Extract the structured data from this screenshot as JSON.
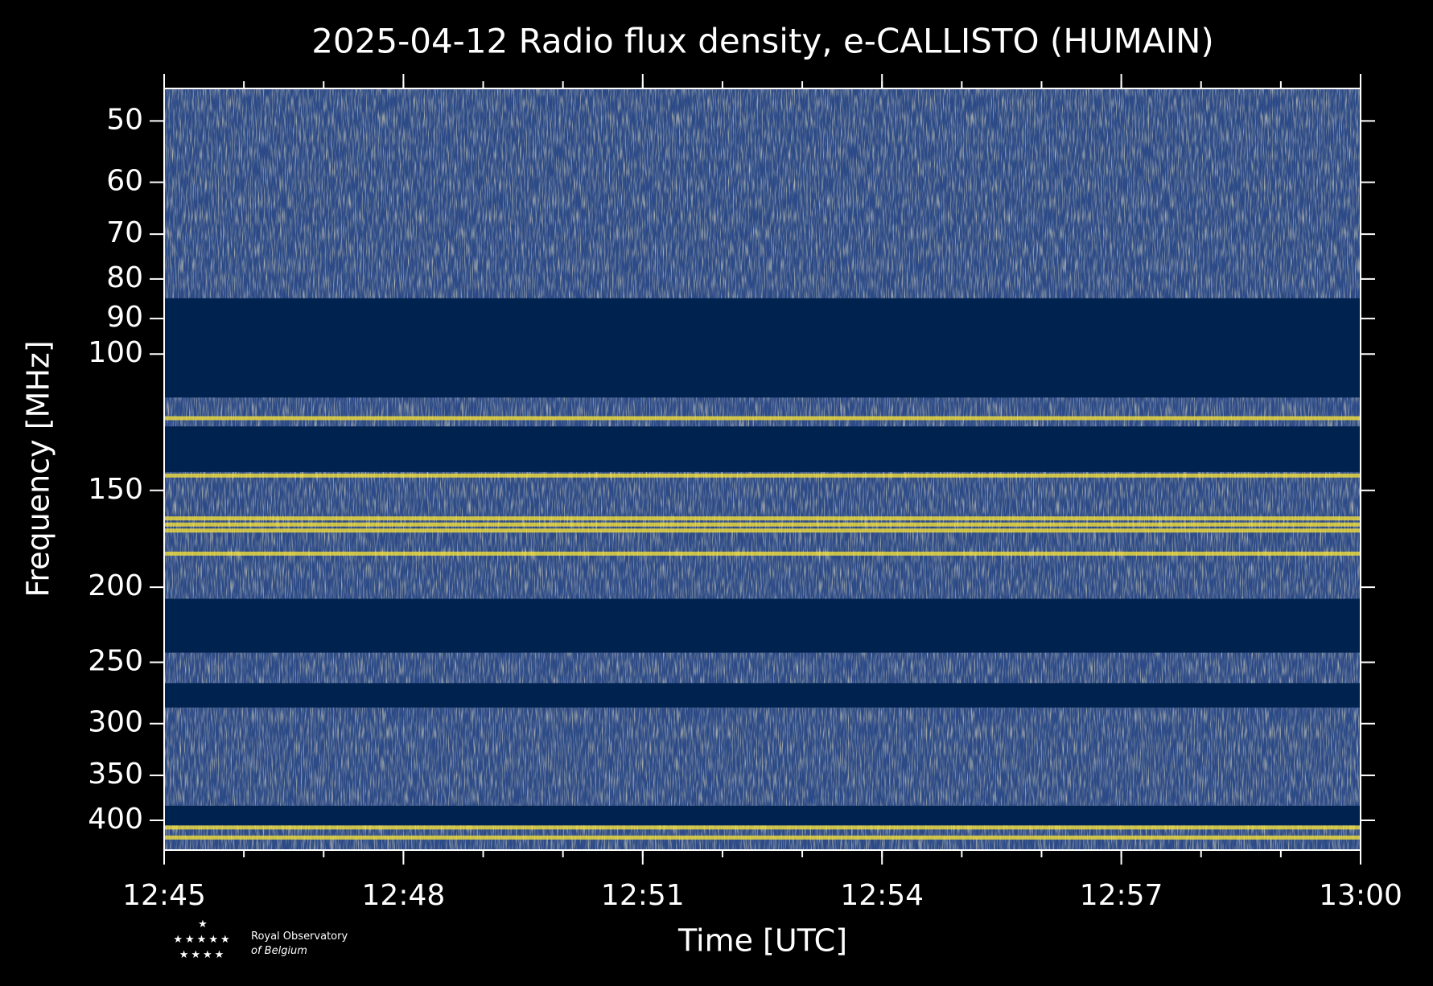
{
  "chart_data": {
    "type": "spectrogram",
    "title": "2025-04-12 Radio flux density, e-CALLISTO (HUMAIN)",
    "x_label": "Time [UTC]",
    "y_label": "Frequency [MHz]",
    "xlim": [
      "12:45",
      "13:00"
    ],
    "xticks": [
      "12:45",
      "12:48",
      "12:51",
      "12:54",
      "12:57",
      "13:00"
    ],
    "ylim": [
      45.4,
      437
    ],
    "yticks": [
      50,
      60,
      70,
      80,
      90,
      100,
      150,
      200,
      250,
      300,
      350,
      400
    ],
    "log_y": true,
    "invert_y": true,
    "masked_bands": [
      [
        84.7,
        113.8
      ],
      [
        124,
        142
      ],
      [
        207,
        243
      ],
      [
        266,
        286
      ],
      [
        383,
        406
      ]
    ],
    "bright_lines": [
      121,
      143.5,
      163,
      166,
      169,
      181,
      408.6,
      421
    ],
    "color": "#fde737",
    "mask_color": "#00224e",
    "noise_color": "#2c4a87",
    "footer": {
      "line1": "Royal Observatory",
      "line2": "of Belgium"
    }
  }
}
